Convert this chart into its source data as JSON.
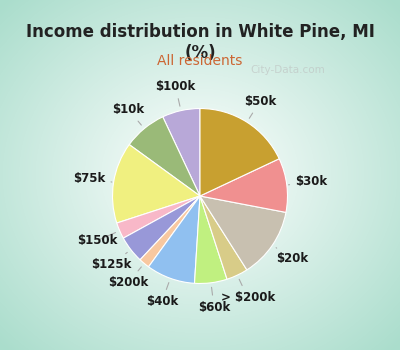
{
  "title": "Income distribution in White Pine, MI\n(%)",
  "subtitle": "All residents",
  "title_color": "#222222",
  "subtitle_color": "#cc6633",
  "border_color": "#00ffff",
  "bg_inner": "#ffffff",
  "bg_outer": "#aaddcc",
  "labels": [
    "$100k",
    "$10k",
    "$75k",
    "$150k",
    "$125k",
    "$200k",
    "$40k",
    "$60k",
    "> $200k",
    "$20k",
    "$30k",
    "$50k"
  ],
  "values": [
    7,
    8,
    15,
    3,
    5,
    2,
    9,
    6,
    4,
    13,
    10,
    18
  ],
  "colors": [
    "#b8a8d8",
    "#9aba78",
    "#f0f080",
    "#f8b8c8",
    "#9898d8",
    "#f8c8a0",
    "#90c0f0",
    "#c0f080",
    "#d8cc88",
    "#c8c0b0",
    "#f09090",
    "#c8a030"
  ],
  "startangle": 90,
  "figsize": [
    4.0,
    3.5
  ],
  "dpi": 100,
  "label_r": 1.28,
  "label_fontsize": 8.5,
  "watermark": "City-Data.com"
}
